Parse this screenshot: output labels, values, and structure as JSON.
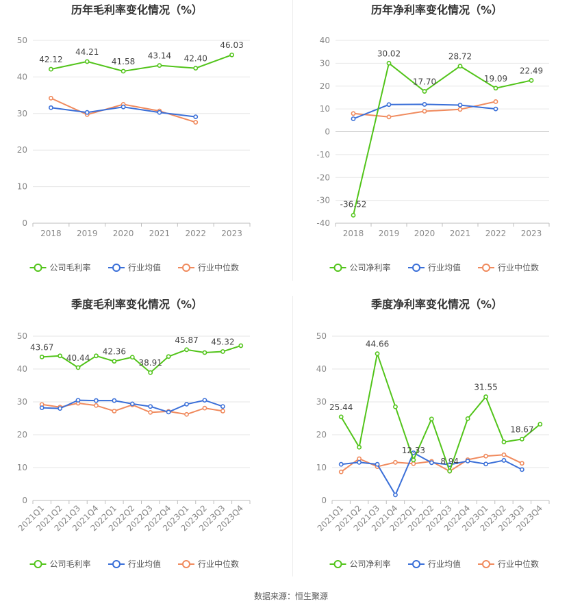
{
  "footer": {
    "source": "数据来源：恒生聚源"
  },
  "colors": {
    "company": "#52c41a",
    "industry_avg": "#3a6fd8",
    "industry_median": "#f08a5d",
    "grid": "#e6e6e6",
    "axis_text": "#888888",
    "title": "#333333"
  },
  "chart_data": [
    {
      "id": "annual-gross",
      "type": "line",
      "title": "历年毛利率变化情况（%）",
      "categories": [
        "2018",
        "2019",
        "2020",
        "2021",
        "2022",
        "2023"
      ],
      "ylim": [
        0,
        50
      ],
      "yticks": [
        0,
        10,
        20,
        30,
        40,
        50
      ],
      "grid": true,
      "legend_position": "bottom",
      "series": [
        {
          "name": "公司毛利率",
          "key": "company",
          "values": [
            42.12,
            44.21,
            41.58,
            43.14,
            42.4,
            46.03
          ],
          "labels": [
            "42.12",
            "44.21",
            "41.58",
            "43.14",
            "42.40",
            "46.03"
          ]
        },
        {
          "name": "行业均值",
          "key": "industry_avg",
          "values": [
            31.6,
            30.3,
            31.8,
            30.3,
            29.1,
            null
          ]
        },
        {
          "name": "行业中位数",
          "key": "industry_median",
          "values": [
            34.2,
            29.7,
            32.5,
            30.7,
            27.6,
            null
          ]
        }
      ]
    },
    {
      "id": "annual-net",
      "type": "line",
      "title": "历年净利率变化情况（%）",
      "categories": [
        "2018",
        "2019",
        "2020",
        "2021",
        "2022",
        "2023"
      ],
      "ylim": [
        -40,
        40
      ],
      "yticks": [
        -40,
        -30,
        -20,
        -10,
        0,
        10,
        20,
        30,
        40
      ],
      "grid": true,
      "legend_position": "bottom",
      "series": [
        {
          "name": "公司净利率",
          "key": "company",
          "values": [
            -36.52,
            30.02,
            17.7,
            28.72,
            19.09,
            22.49
          ],
          "labels": [
            "-36.52",
            "30.02",
            "17.70",
            "28.72",
            "19.09",
            "22.49"
          ]
        },
        {
          "name": "行业均值",
          "key": "industry_avg",
          "values": [
            5.7,
            11.9,
            12.0,
            11.7,
            10.0,
            null
          ]
        },
        {
          "name": "行业中位数",
          "key": "industry_median",
          "values": [
            8.0,
            6.5,
            9.0,
            9.8,
            13.2,
            null
          ]
        }
      ]
    },
    {
      "id": "quarterly-gross",
      "type": "line",
      "title": "季度毛利率变化情况（%）",
      "categories": [
        "2021Q1",
        "2021Q2",
        "2021Q3",
        "2021Q4",
        "2022Q1",
        "2022Q2",
        "2022Q3",
        "2022Q4",
        "2023Q1",
        "2023Q2",
        "2023Q3",
        "2023Q4"
      ],
      "ylim": [
        0,
        50
      ],
      "yticks": [
        0,
        10,
        20,
        30,
        40,
        50
      ],
      "grid": true,
      "legend_position": "bottom",
      "series": [
        {
          "name": "公司毛利率",
          "key": "company",
          "values": [
            43.67,
            44.0,
            40.44,
            44.0,
            42.36,
            43.6,
            38.91,
            43.8,
            45.87,
            45.0,
            45.32,
            47.1
          ],
          "labels": [
            "43.67",
            "",
            "40.44",
            "",
            "42.36",
            "",
            "38.91",
            "",
            "45.87",
            "",
            "45.32",
            ""
          ]
        },
        {
          "name": "行业均值",
          "key": "industry_avg",
          "values": [
            28.2,
            28.0,
            30.5,
            30.4,
            30.4,
            29.4,
            28.6,
            26.9,
            29.3,
            30.5,
            28.6,
            null
          ]
        },
        {
          "name": "行业中位数",
          "key": "industry_median",
          "values": [
            29.2,
            28.4,
            29.6,
            28.9,
            27.2,
            29.1,
            26.8,
            27.1,
            26.2,
            28.1,
            27.2,
            null
          ]
        }
      ]
    },
    {
      "id": "quarterly-net",
      "type": "line",
      "title": "季度净利率变化情况（%）",
      "categories": [
        "2021Q1",
        "2021Q2",
        "2021Q3",
        "2021Q4",
        "2022Q1",
        "2022Q2",
        "2022Q3",
        "2022Q4",
        "2023Q1",
        "2023Q2",
        "2023Q3",
        "2023Q4"
      ],
      "ylim": [
        0,
        50
      ],
      "yticks": [
        0,
        10,
        20,
        30,
        40,
        50
      ],
      "grid": true,
      "legend_position": "bottom",
      "series": [
        {
          "name": "公司净利率",
          "key": "company",
          "values": [
            25.44,
            16.2,
            44.66,
            28.5,
            12.33,
            24.8,
            8.94,
            24.9,
            31.55,
            17.8,
            18.67,
            23.2
          ],
          "labels": [
            "25.44",
            "",
            "44.66",
            "",
            "12.33",
            "",
            "8.94",
            "",
            "31.55",
            "",
            "18.67",
            ""
          ]
        },
        {
          "name": "行业均值",
          "key": "industry_avg",
          "values": [
            11.0,
            11.6,
            11.0,
            1.7,
            14.5,
            11.5,
            10.9,
            12.0,
            11.1,
            12.2,
            9.4,
            null
          ]
        },
        {
          "name": "行业中位数",
          "key": "industry_median",
          "values": [
            8.7,
            12.7,
            10.3,
            11.6,
            11.2,
            11.9,
            8.9,
            12.4,
            13.5,
            13.9,
            11.3,
            null
          ]
        }
      ]
    }
  ]
}
